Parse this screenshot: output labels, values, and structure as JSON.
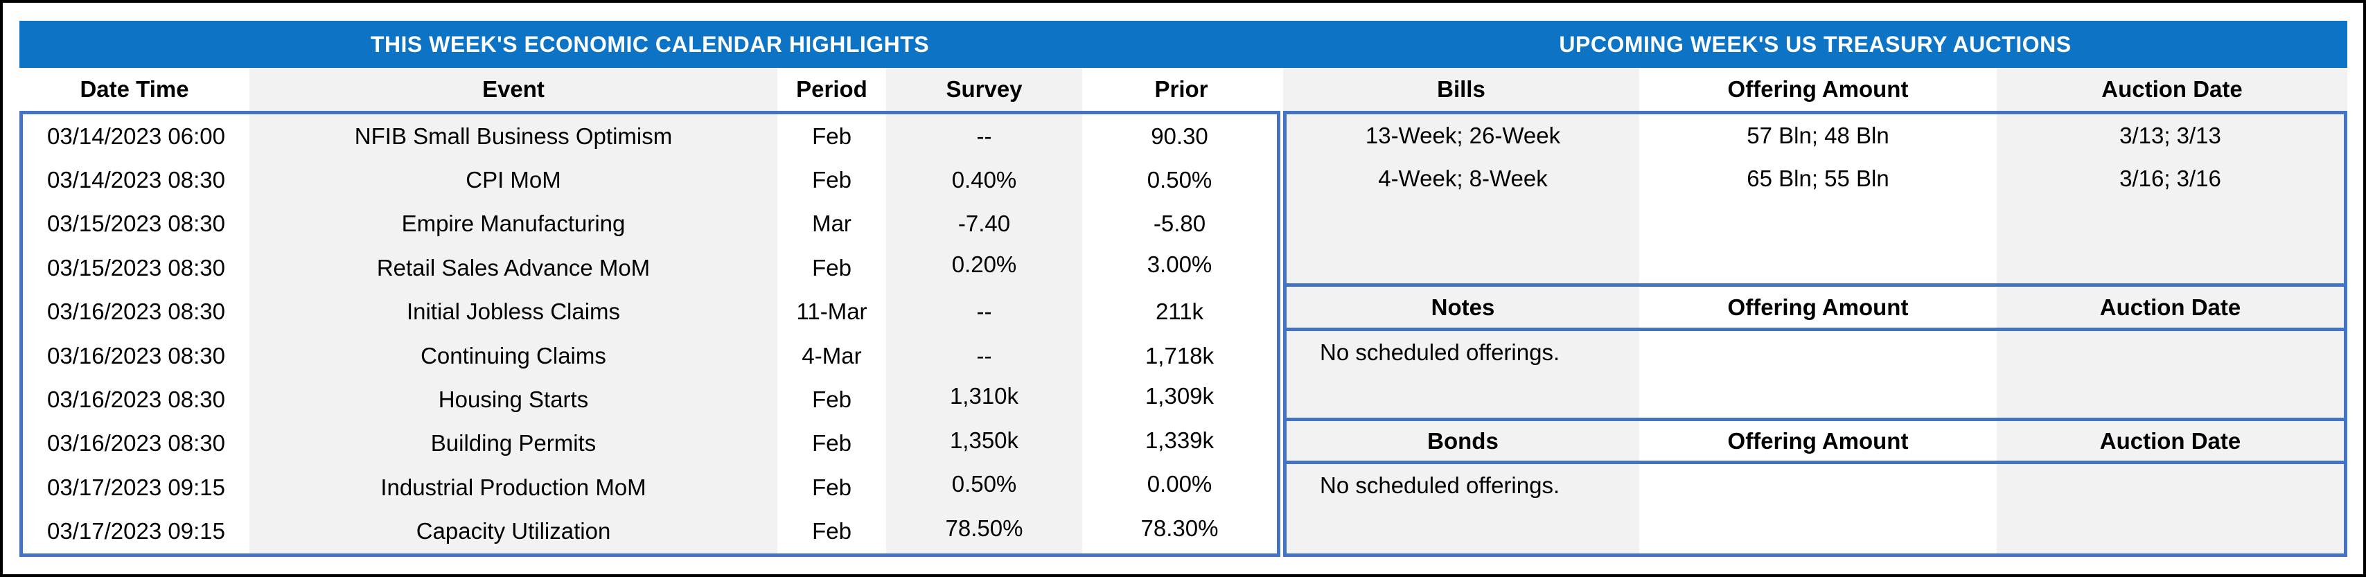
{
  "colors": {
    "title_band_blue": "#0d73c4",
    "border_blue": "#4472c4",
    "stripe_gray": "#f2f2f2",
    "outer_border_black": "#000000"
  },
  "calendar": {
    "title": "THIS WEEK'S ECONOMIC CALENDAR HIGHLIGHTS",
    "columns": {
      "date": "Date Time",
      "event": "Event",
      "period": "Period",
      "survey": "Survey",
      "prior": "Prior"
    },
    "rows": [
      {
        "date": "03/14/2023 06:00",
        "event": "NFIB Small Business Optimism",
        "period": "Feb",
        "survey": "--",
        "prior": "90.30"
      },
      {
        "date": "03/14/2023 08:30",
        "event": "CPI MoM",
        "period": "Feb",
        "survey": "0.40%",
        "prior": "0.50%"
      },
      {
        "date": "03/15/2023 08:30",
        "event": "Empire Manufacturing",
        "period": "Mar",
        "survey": "-7.40",
        "prior": "-5.80"
      },
      {
        "date": "03/15/2023 08:30",
        "event": "Retail Sales Advance MoM",
        "period": "Feb",
        "survey": "0.20%",
        "prior": "3.00%"
      },
      {
        "date": "03/16/2023 08:30",
        "event": "Initial Jobless Claims",
        "period": "11-Mar",
        "survey": "--",
        "prior": "211k"
      },
      {
        "date": "03/16/2023 08:30",
        "event": "Continuing Claims",
        "period": "4-Mar",
        "survey": "--",
        "prior": "1,718k"
      },
      {
        "date": "03/16/2023 08:30",
        "event": "Housing Starts",
        "period": "Feb",
        "survey": "1,310k",
        "prior": "1,309k"
      },
      {
        "date": "03/16/2023 08:30",
        "event": "Building Permits",
        "period": "Feb",
        "survey": "1,350k",
        "prior": "1,339k"
      },
      {
        "date": "03/17/2023 09:15",
        "event": "Industrial Production MoM",
        "period": "Feb",
        "survey": "0.50%",
        "prior": "0.00%"
      },
      {
        "date": "03/17/2023 09:15",
        "event": "Capacity Utilization",
        "period": "Feb",
        "survey": "78.50%",
        "prior": "78.30%"
      }
    ]
  },
  "auctions": {
    "title": "UPCOMING WEEK'S US TREASURY AUCTIONS",
    "bills": {
      "label": "Bills",
      "offering_header": "Offering Amount",
      "date_header": "Auction Date",
      "rows": [
        {
          "security": "13-Week; 26-Week",
          "offering": "57 Bln; 48 Bln",
          "auction_date": "3/13; 3/13"
        },
        {
          "security": "4-Week; 8-Week",
          "offering": "65 Bln; 55 Bln",
          "auction_date": "3/16; 3/16"
        }
      ]
    },
    "notes": {
      "label": "Notes",
      "offering_header": "Offering Amount",
      "date_header": "Auction Date",
      "empty_message": "No scheduled offerings."
    },
    "bonds": {
      "label": "Bonds",
      "offering_header": "Offering Amount",
      "date_header": "Auction Date",
      "empty_message": "No scheduled offerings."
    }
  }
}
